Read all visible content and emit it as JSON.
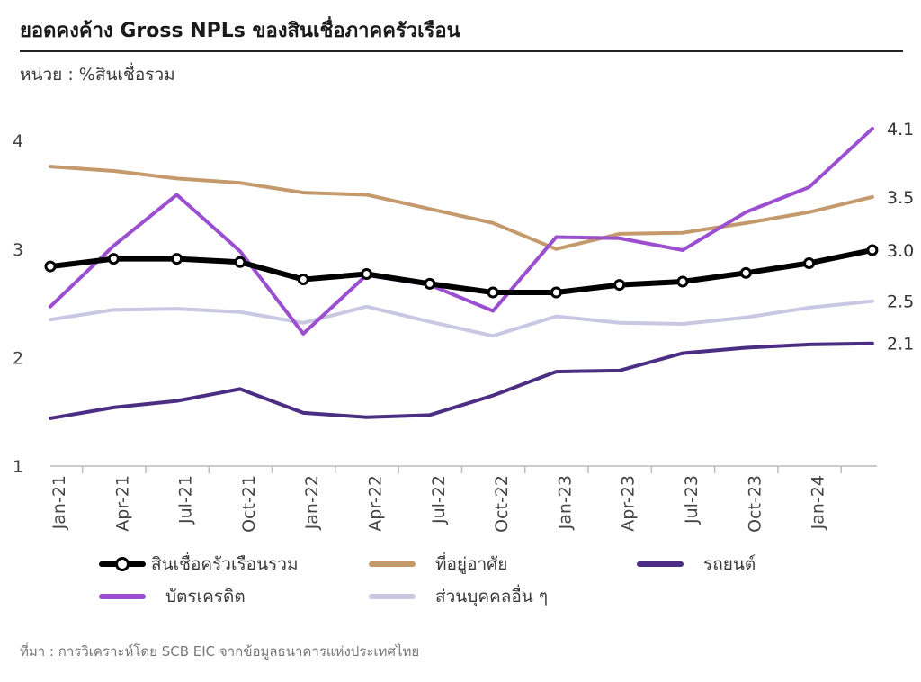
{
  "title": "ยอดคงค้าง Gross NPLs ของสินเชื่อภาคครัวเรือน",
  "unit_label": "หน่วย : %สินเชื่อรวม",
  "source": "ที่มา : การวิเคราะห์โดย SCB EIC จากข้อมูลธนาคารแห่งประเทศไทย",
  "chart_data": {
    "type": "line",
    "x": [
      "Jan-21",
      "Apr-21",
      "Jul-21",
      "Oct-21",
      "Jan-22",
      "Apr-22",
      "Jul-22",
      "Oct-22",
      "Jan-23",
      "Apr-23",
      "Jul-23",
      "Oct-23",
      "Jan-24",
      "Apr-24"
    ],
    "x_tick_labels": [
      "Jan-21",
      "Apr-21",
      "Jul-21",
      "Oct-21",
      "Jan-22",
      "Apr-22",
      "Jul-22",
      "Oct-22",
      "Jan-23",
      "Apr-23",
      "Jul-23",
      "Oct-23",
      "Jan-24"
    ],
    "ylim": [
      1,
      4.3
    ],
    "yticks": [
      "1",
      "2",
      "3",
      "4"
    ],
    "grid": false,
    "legend_position": "bottom",
    "series": [
      {
        "name": "สินเชื่อครัวเรือนรวม",
        "color": "#000000",
        "markers": true,
        "width": 6,
        "values": [
          2.84,
          2.91,
          2.91,
          2.88,
          2.72,
          2.77,
          2.68,
          2.6,
          2.6,
          2.67,
          2.7,
          2.78,
          2.87,
          2.99
        ],
        "end_label": "3.0"
      },
      {
        "name": "ที่อยู่อาศัย",
        "color": "#c49a6c",
        "markers": false,
        "width": 4,
        "values": [
          3.76,
          3.72,
          3.65,
          3.61,
          3.52,
          3.5,
          3.37,
          3.24,
          3.0,
          3.14,
          3.15,
          3.24,
          3.34,
          3.48
        ],
        "end_label": "3.5"
      },
      {
        "name": "รถยนต์",
        "color": "#4b2e83",
        "markers": false,
        "width": 4,
        "values": [
          1.44,
          1.54,
          1.6,
          1.71,
          1.49,
          1.45,
          1.47,
          1.65,
          1.87,
          1.88,
          2.04,
          2.09,
          2.12,
          2.13
        ],
        "end_label": "2.1"
      },
      {
        "name": "บัตรเครดิต",
        "color": "#9b4fd0",
        "markers": false,
        "width": 4,
        "values": [
          2.47,
          3.03,
          3.5,
          2.98,
          2.22,
          2.76,
          2.67,
          2.43,
          3.11,
          3.1,
          2.99,
          3.34,
          3.57,
          4.11
        ],
        "end_label": "4.1"
      },
      {
        "name": "ส่วนบุคคลอื่น ๆ",
        "color": "#c9c7e2",
        "markers": false,
        "width": 4,
        "values": [
          2.35,
          2.44,
          2.45,
          2.42,
          2.32,
          2.47,
          2.33,
          2.2,
          2.38,
          2.32,
          2.31,
          2.37,
          2.46,
          2.52
        ],
        "end_label": "2.5"
      }
    ]
  }
}
